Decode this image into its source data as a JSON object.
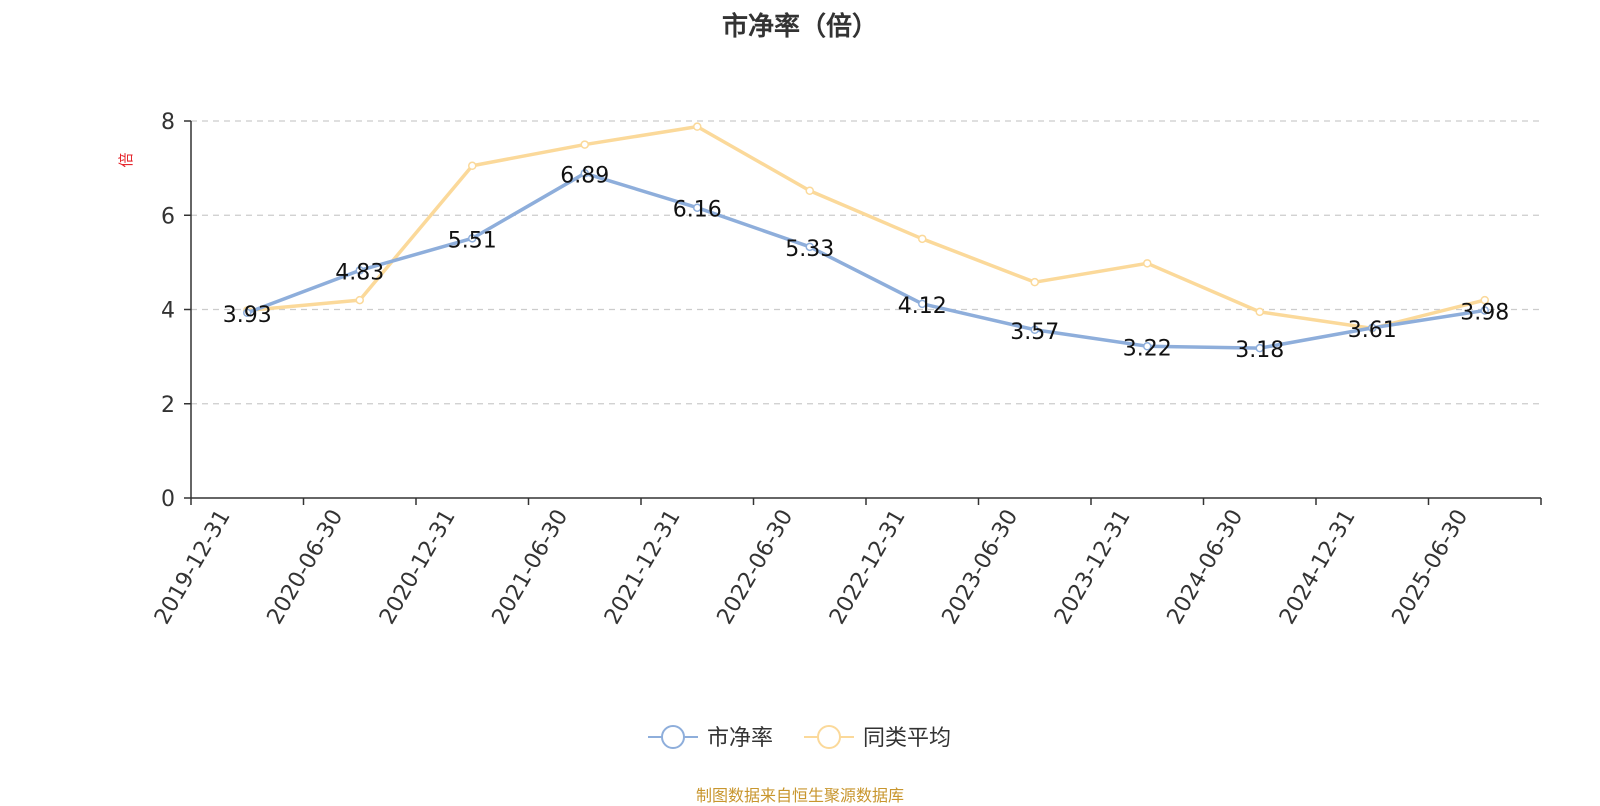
{
  "chart_data": {
    "type": "line",
    "title": "市净率（倍）",
    "ylabel": "倍",
    "categories": [
      "2019-12-31",
      "2020-06-30",
      "2020-12-31",
      "2021-06-30",
      "2021-12-31",
      "2022-06-30",
      "2022-12-31",
      "2023-06-30",
      "2023-12-31",
      "2024-06-30",
      "2024-12-31",
      "2025-06-30"
    ],
    "series": [
      {
        "name": "市净率",
        "color": "#8eaedb",
        "values": [
          3.93,
          4.83,
          5.51,
          6.89,
          6.16,
          5.33,
          4.12,
          3.57,
          3.22,
          3.18,
          3.61,
          3.98
        ],
        "labels": [
          "3.93",
          "4.83",
          "5.51",
          "6.89",
          "6.16",
          "5.33",
          "4.12",
          "3.57",
          "3.22",
          "3.18",
          "3.61",
          "3.98"
        ]
      },
      {
        "name": "同类平均",
        "color": "#fbd99a",
        "values": [
          3.98,
          4.2,
          7.05,
          7.5,
          7.88,
          6.52,
          5.5,
          4.58,
          4.98,
          3.95,
          3.6,
          4.2
        ]
      }
    ],
    "ylim": [
      0,
      8
    ],
    "yticks": [
      0,
      2,
      4,
      6,
      8
    ],
    "grid": true,
    "legend_position": "bottom",
    "source": "制图数据来自恒生聚源数据库"
  }
}
